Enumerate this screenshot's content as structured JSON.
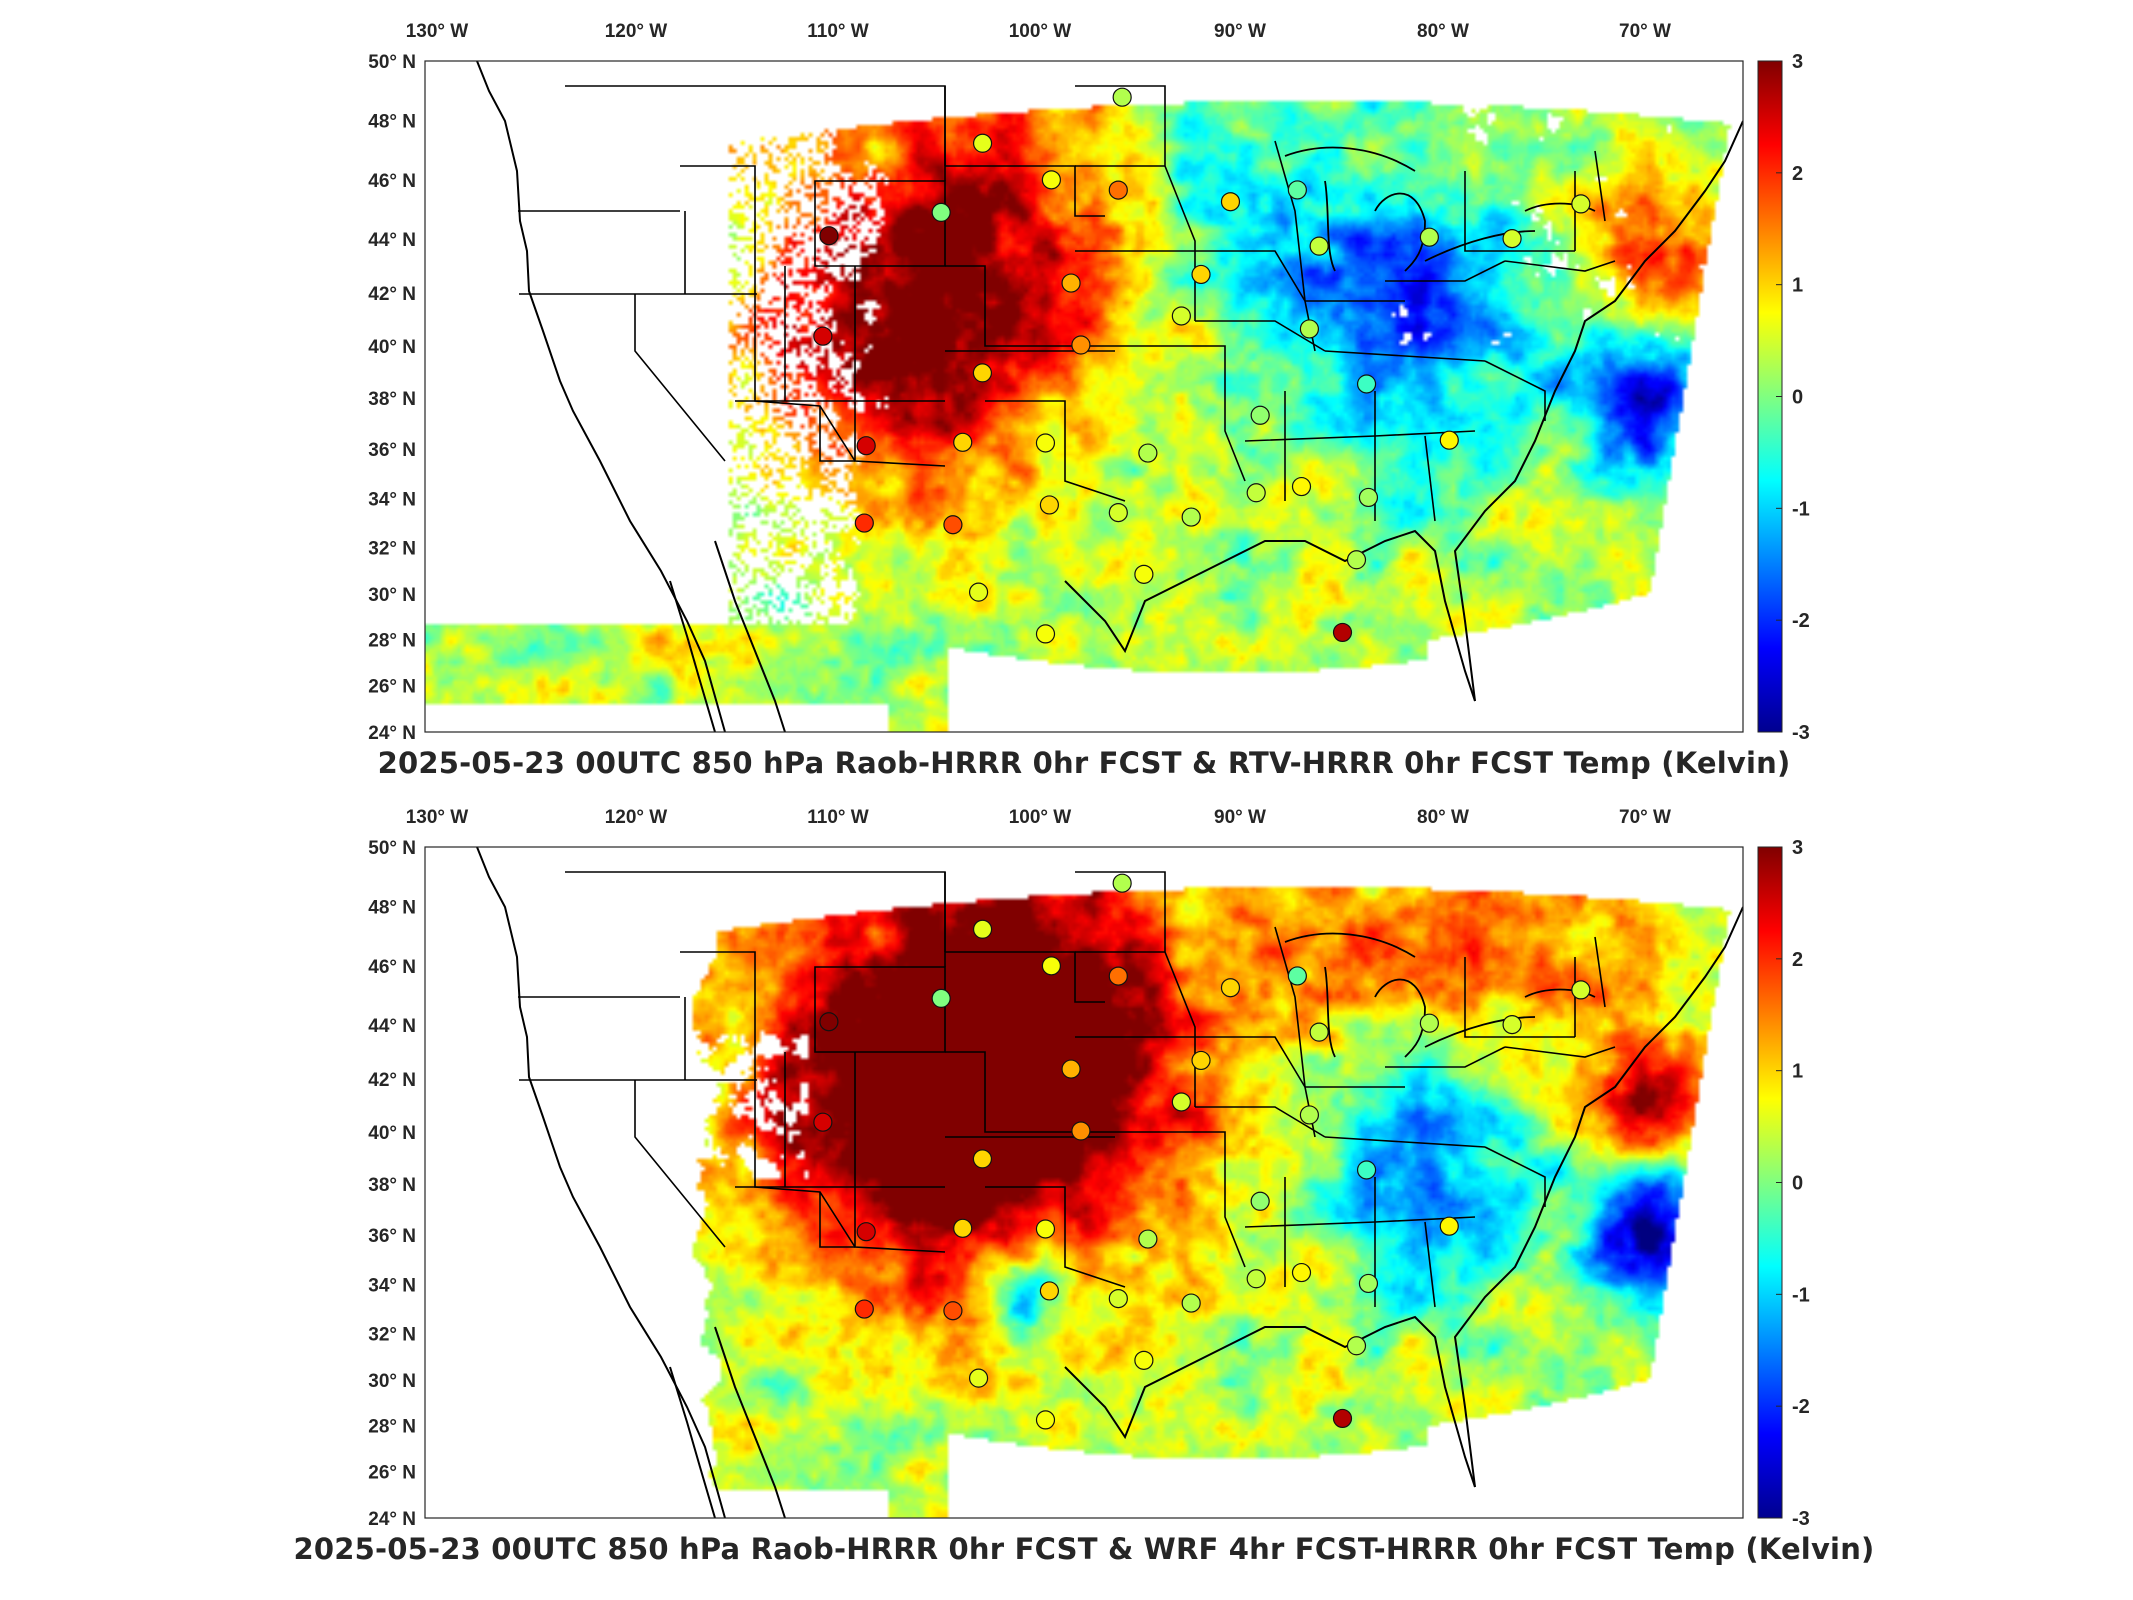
{
  "panels": [
    {
      "title": "2025-05-23 00UTC 850 hPa Raob-HRRR 0hr FCST & RTV-HRRR 0hr FCST Temp (Kelvin)",
      "field": "rtv",
      "colorbar_ticks": [
        "3",
        "2",
        "1",
        "0",
        "-1",
        "-2",
        "-3"
      ]
    },
    {
      "title": "2025-05-23 00UTC 850 hPa Raob-HRRR 0hr FCST & WRF 4hr FCST-HRRR 0hr FCST Temp (Kelvin)",
      "field": "wrf",
      "colorbar_ticks": [
        "3",
        "2",
        "1",
        "0",
        "-1",
        "-2",
        "-3"
      ]
    }
  ],
  "lon_labels": [
    "130° W",
    "120° W",
    "110° W",
    "100° W",
    "90° W",
    "80° W",
    "70° W"
  ],
  "lat_labels": [
    "50° N",
    "48° N",
    "46° N",
    "44° N",
    "42° N",
    "40° N",
    "38° N",
    "36° N",
    "34° N",
    "32° N",
    "30° N",
    "28° N",
    "26° N",
    "24° N"
  ],
  "colormap": "jet",
  "colorbar_range": [
    -3,
    3
  ],
  "raob_stations": [
    {
      "lon": -100.7,
      "lat": 46.8,
      "v": 0.6
    },
    {
      "lon": -97.2,
      "lat": 45.4,
      "v": 0.7
    },
    {
      "lon": -93.6,
      "lat": 48.6,
      "v": 0.3
    },
    {
      "lon": -93.8,
      "lat": 45.0,
      "v": 1.6
    },
    {
      "lon": -88.1,
      "lat": 44.5,
      "v": 1.0
    },
    {
      "lon": -84.7,
      "lat": 44.9,
      "v": -0.2
    },
    {
      "lon": -102.8,
      "lat": 44.1,
      "v": 0.0
    },
    {
      "lon": -108.5,
      "lat": 43.1,
      "v": 3.0
    },
    {
      "lon": -96.2,
      "lat": 41.4,
      "v": 1.2
    },
    {
      "lon": -89.6,
      "lat": 41.7,
      "v": 1.0
    },
    {
      "lon": -83.6,
      "lat": 42.7,
      "v": 0.4
    },
    {
      "lon": -78.0,
      "lat": 42.9,
      "v": 0.3
    },
    {
      "lon": -73.8,
      "lat": 42.7,
      "v": 0.5
    },
    {
      "lon": -70.3,
      "lat": 43.9,
      "v": 0.5
    },
    {
      "lon": -108.8,
      "lat": 39.2,
      "v": 2.5
    },
    {
      "lon": -100.7,
      "lat": 37.9,
      "v": 1.0
    },
    {
      "lon": -95.7,
      "lat": 39.0,
      "v": 1.4
    },
    {
      "lon": -90.6,
      "lat": 40.1,
      "v": 0.5
    },
    {
      "lon": -84.1,
      "lat": 39.5,
      "v": 0.3
    },
    {
      "lon": -81.2,
      "lat": 37.3,
      "v": -0.4
    },
    {
      "lon": -106.6,
      "lat": 35.0,
      "v": 2.5
    },
    {
      "lon": -101.7,
      "lat": 35.2,
      "v": 1.0
    },
    {
      "lon": -97.5,
      "lat": 35.2,
      "v": 0.7
    },
    {
      "lon": -92.3,
      "lat": 34.8,
      "v": 0.3
    },
    {
      "lon": -86.6,
      "lat": 36.2,
      "v": 0.1
    },
    {
      "lon": -84.5,
      "lat": 33.4,
      "v": 0.8
    },
    {
      "lon": -86.8,
      "lat": 33.2,
      "v": 0.4
    },
    {
      "lon": -90.1,
      "lat": 32.3,
      "v": 0.3
    },
    {
      "lon": -77.0,
      "lat": 35.0,
      "v": 0.8
    },
    {
      "lon": -81.1,
      "lat": 32.9,
      "v": 0.2
    },
    {
      "lon": -106.7,
      "lat": 32.0,
      "v": 2.0
    },
    {
      "lon": -102.2,
      "lat": 32.0,
      "v": 1.8
    },
    {
      "lon": -97.3,
      "lat": 32.8,
      "v": 1.0
    },
    {
      "lon": -93.8,
      "lat": 32.5,
      "v": 0.5
    },
    {
      "lon": -100.9,
      "lat": 29.4,
      "v": 0.6
    },
    {
      "lon": -97.5,
      "lat": 27.8,
      "v": 0.7
    },
    {
      "lon": -92.5,
      "lat": 30.1,
      "v": 0.7
    },
    {
      "lon": -81.7,
      "lat": 30.5,
      "v": 0.3
    },
    {
      "lon": -82.4,
      "lat": 27.7,
      "v": 2.7
    }
  ],
  "map_labels": {
    "panel_top_field_note": "",
    "panel_bottom_field_note": ""
  }
}
